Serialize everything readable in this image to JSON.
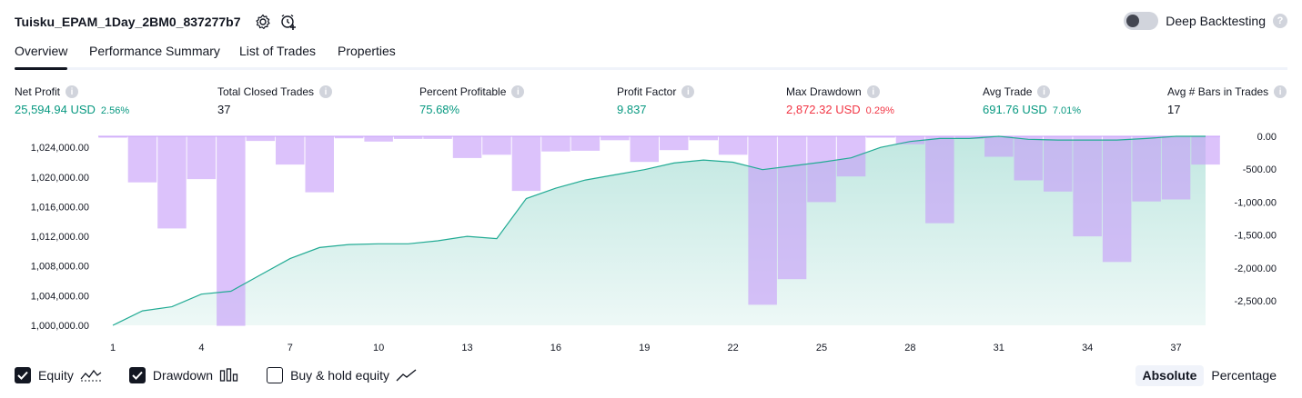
{
  "header": {
    "title": "Tuisku_EPAM_1Day_2BM0_837277b7",
    "deep_backtesting_label": "Deep Backtesting",
    "deep_backtesting_on": false
  },
  "tabs": [
    {
      "label": "Overview",
      "active": true
    },
    {
      "label": "Performance Summary",
      "active": false
    },
    {
      "label": "List of Trades",
      "active": false
    },
    {
      "label": "Properties",
      "active": false
    }
  ],
  "metrics": [
    {
      "label": "Net Profit",
      "value": "25,594.94 USD",
      "sub": "2.56%",
      "tone": "green"
    },
    {
      "label": "Total Closed Trades",
      "value": "37",
      "sub": "",
      "tone": "dark"
    },
    {
      "label": "Percent Profitable",
      "value": "75.68%",
      "sub": "",
      "tone": "green"
    },
    {
      "label": "Profit Factor",
      "value": "9.837",
      "sub": "",
      "tone": "green"
    },
    {
      "label": "Max Drawdown",
      "value": "2,872.32 USD",
      "sub": "0.29%",
      "tone": "red"
    },
    {
      "label": "Avg Trade",
      "value": "691.76 USD",
      "sub": "7.01%",
      "tone": "green"
    },
    {
      "label": "Avg # Bars in Trades",
      "value": "17",
      "sub": "",
      "tone": "dark"
    }
  ],
  "chart_data": {
    "type": "area",
    "x": [
      1,
      2,
      3,
      4,
      5,
      6,
      7,
      8,
      9,
      10,
      11,
      12,
      13,
      14,
      15,
      16,
      17,
      18,
      19,
      20,
      21,
      22,
      23,
      24,
      25,
      26,
      27,
      28,
      29,
      30,
      31,
      32,
      33,
      34,
      35,
      36,
      37,
      38
    ],
    "x_ticks": [
      "1",
      "4",
      "7",
      "10",
      "13",
      "16",
      "19",
      "22",
      "25",
      "28",
      "31",
      "34",
      "37"
    ],
    "left_axis": {
      "ticks": [
        "1,000,000.00",
        "1,004,000.00",
        "1,008,000.00",
        "1,012,000.00",
        "1,016,000.00",
        "1,020,000.00",
        "1,024,000.00"
      ],
      "ylim": [
        1000000,
        1025500
      ]
    },
    "right_axis": {
      "ticks": [
        "0.00",
        "-500.00",
        "-1,000.00",
        "-1,500.00",
        "-2,000.00",
        "-2,500.00"
      ],
      "ylim": [
        -2872,
        0
      ]
    },
    "series": [
      {
        "name": "Equity",
        "kind": "area",
        "axis": "left",
        "values": [
          1000000,
          1001950,
          1002500,
          1004200,
          1004600,
          1006800,
          1009000,
          1010500,
          1010900,
          1011000,
          1011000,
          1011400,
          1012000,
          1011700,
          1017100,
          1018500,
          1019600,
          1020300,
          1021000,
          1021900,
          1022300,
          1022000,
          1021000,
          1021500,
          1022000,
          1022600,
          1024000,
          1024800,
          1025200,
          1025200,
          1025500,
          1025100,
          1025000,
          1025000,
          1025000,
          1025200,
          1025500,
          1025500
        ],
        "color": "#22ab94"
      },
      {
        "name": "Drawdown",
        "kind": "bar",
        "axis": "right",
        "values": [
          0,
          -700,
          -1400,
          -650,
          -2880,
          -70,
          -430,
          -850,
          -30,
          -80,
          -40,
          -40,
          -330,
          -280,
          -830,
          -230,
          -220,
          -60,
          -390,
          -210,
          -60,
          -280,
          -2560,
          -2170,
          -1000,
          -610,
          -20,
          -120,
          -1320,
          -40,
          -310,
          -670,
          -840,
          -1520,
          -1910,
          -990,
          -960,
          -430
        ],
        "color": "#c69cf8"
      }
    ]
  },
  "legend": [
    {
      "label": "Equity",
      "checked": true,
      "icon": "equity-wave-icon"
    },
    {
      "label": "Drawdown",
      "checked": true,
      "icon": "drawdown-bars-icon"
    },
    {
      "label": "Buy & hold equity",
      "checked": false,
      "icon": "buy-hold-line-icon"
    }
  ],
  "modes": [
    {
      "label": "Absolute",
      "active": true
    },
    {
      "label": "Percentage",
      "active": false
    }
  ]
}
